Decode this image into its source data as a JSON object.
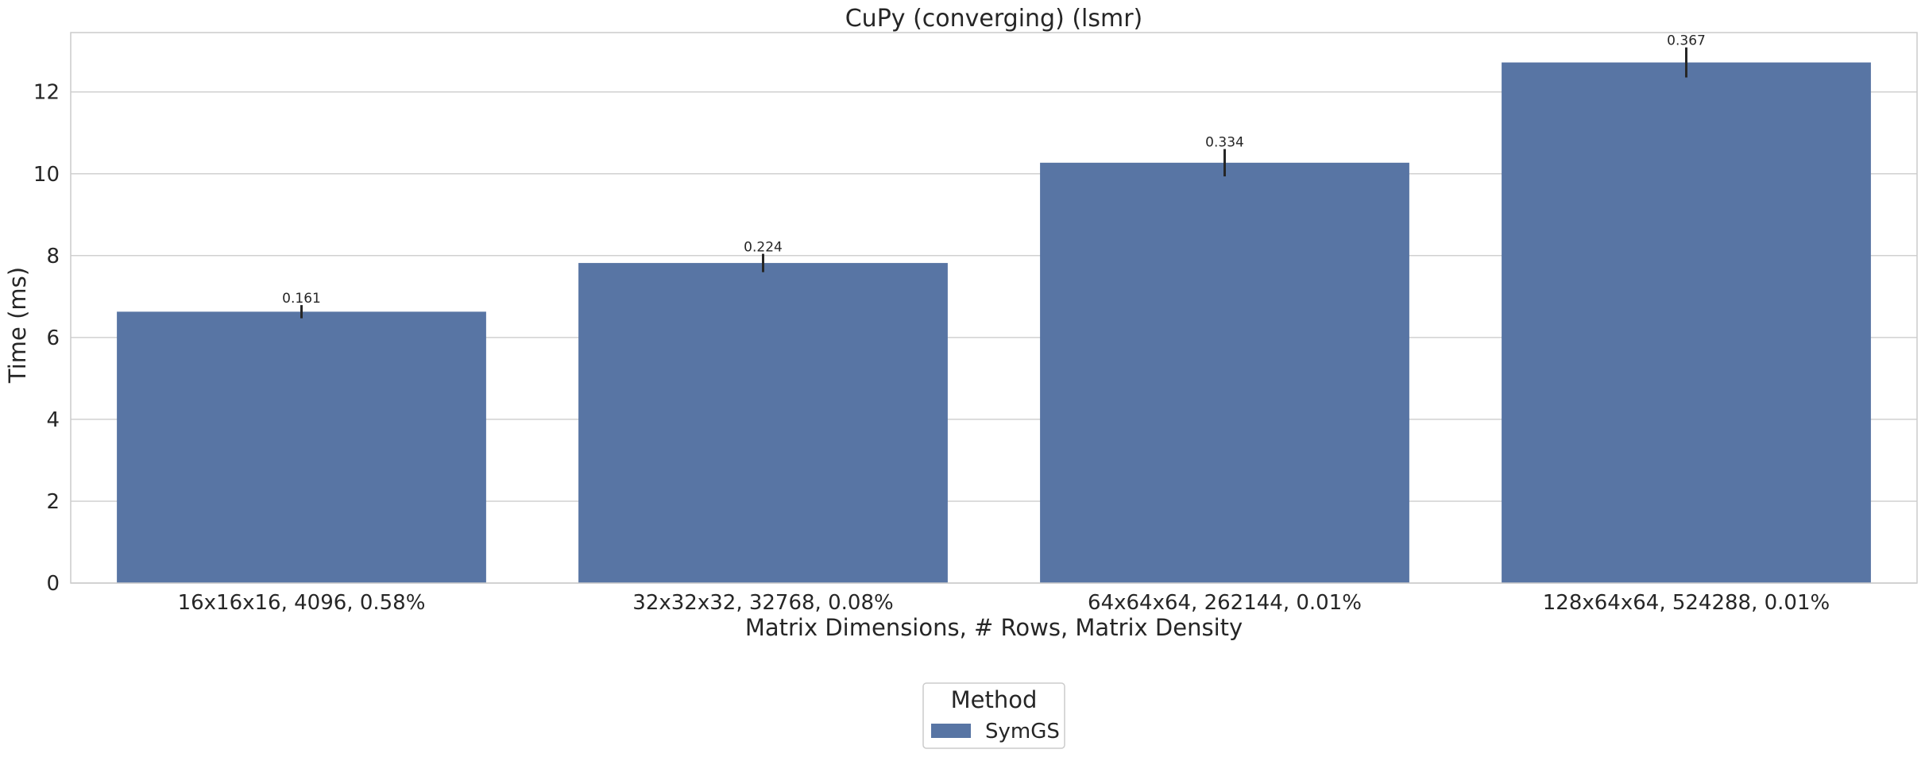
{
  "chart_data": {
    "type": "bar",
    "title": "CuPy (converging) (lsmr)",
    "xlabel": "Matrix Dimensions, # Rows, Matrix Density",
    "ylabel": "Time (ms)",
    "categories": [
      "16x16x16, 4096, 0.58%",
      "32x32x32, 32768, 0.08%",
      "64x64x64, 262144, 0.01%",
      "128x64x64, 524288, 0.01%"
    ],
    "series": [
      {
        "name": "SymGS",
        "values": [
          6.63,
          7.82,
          10.27,
          12.72
        ],
        "errors": [
          0.161,
          0.224,
          0.334,
          0.367
        ],
        "data_labels": [
          "0.161",
          "0.224",
          "0.334",
          "0.367"
        ]
      }
    ],
    "ylim": [
      0,
      13.45
    ],
    "yticks": [
      0,
      2,
      4,
      6,
      8,
      10,
      12
    ],
    "grid": true,
    "legend": {
      "title": "Method",
      "placement": "bottom-center"
    },
    "colors": {
      "bar": "#5875a4",
      "grid": "#d0d0d0",
      "spine": "#cccccc",
      "text": "#262626"
    }
  }
}
